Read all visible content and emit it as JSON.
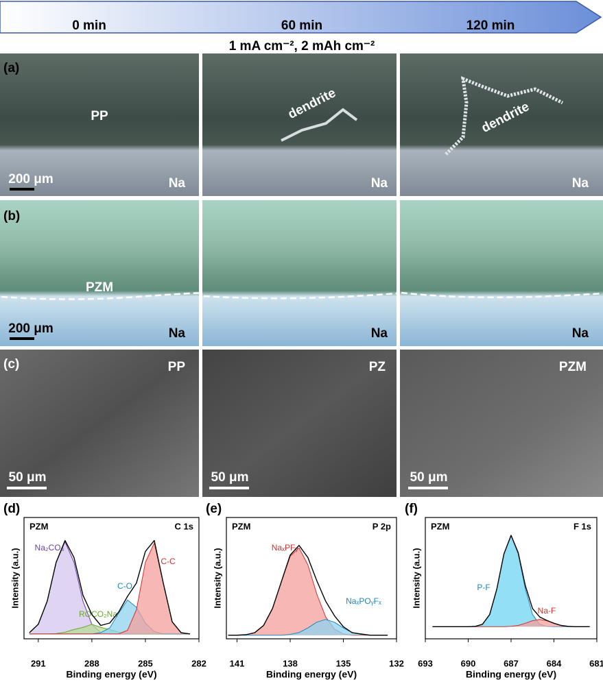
{
  "timeline": {
    "labels": [
      "0 min",
      "60 min",
      "120 min"
    ],
    "condition": "1 mA cm⁻², 2 mAh cm⁻²"
  },
  "panel_a": {
    "label": "(a)",
    "sample": "PP",
    "scale": "200 μm",
    "na": [
      "Na",
      "Na",
      "Na"
    ],
    "dendrite": [
      "dendrite",
      "dendrite"
    ]
  },
  "panel_b": {
    "label": "(b)",
    "sample": "PZM",
    "scale": "200 μm",
    "na": [
      "Na",
      "Na",
      "Na"
    ]
  },
  "panel_c": {
    "label": "(c)",
    "samples": [
      "PP",
      "PZ",
      "PZM"
    ],
    "scale": [
      "50 μm",
      "50 μm",
      "50 μm"
    ]
  },
  "chart_data": [
    {
      "type": "line",
      "panel": "(d)",
      "sample": "PZM",
      "region": "C 1s",
      "xlabel": "Binding energy (eV)",
      "ylabel": "Intensity (a.u.)",
      "x": [
        291.5,
        291,
        290.5,
        290,
        289.5,
        289,
        288.5,
        288,
        287.5,
        287,
        286.5,
        286,
        285.5,
        285,
        284.5,
        284,
        283.5,
        283,
        282.5
      ],
      "xlim": [
        291.8,
        282
      ],
      "xticks": [
        291,
        288,
        285,
        282
      ],
      "ylim": [
        0,
        100
      ],
      "series": [
        {
          "name": "Na₂CO₃",
          "color": "#6a3fa8",
          "fill": "#d6c6ef",
          "values": [
            5,
            12,
            31,
            63,
            80,
            63,
            31,
            12,
            5,
            4,
            4,
            4,
            4,
            4,
            4,
            4,
            4,
            4,
            4
          ]
        },
        {
          "name": "ROCO₂Na",
          "color": "#6aa62a",
          "fill": "#b9dc98",
          "values": [
            4,
            4,
            4,
            4.3,
            5.4,
            7.7,
            9.4,
            12,
            9.4,
            7.7,
            5.4,
            4.3,
            4,
            4,
            4,
            4,
            4,
            4,
            4
          ]
        },
        {
          "name": "C-O",
          "color": "#1f86c0",
          "fill": "#8fd3ef",
          "values": [
            4,
            4,
            4,
            4,
            4,
            4,
            4,
            4,
            5,
            9,
            21,
            32,
            26,
            13,
            6,
            4,
            4,
            4,
            4
          ]
        },
        {
          "name": "C-C",
          "color": "#d32f2f",
          "fill": "#f4a09c",
          "values": [
            4,
            4,
            4,
            4,
            4,
            4,
            4,
            4,
            4,
            4,
            4,
            7,
            24,
            63,
            79,
            46,
            14,
            5,
            4
          ]
        },
        {
          "color": "#000000",
          "values": [
            5,
            12,
            31,
            63,
            81,
            67,
            36,
            20,
            11,
            13,
            22,
            35,
            46,
            72,
            81,
            46,
            14,
            5,
            4
          ]
        }
      ]
    },
    {
      "type": "line",
      "panel": "(e)",
      "sample": "PZM",
      "region": "P 2p",
      "xlabel": "Binding energy (eV)",
      "ylabel": "Intensity (a.u.)",
      "x": [
        141.5,
        141,
        140.5,
        140,
        139.5,
        139,
        138.5,
        138,
        137.5,
        137,
        136.5,
        136,
        135.5,
        135,
        134.5,
        134,
        133.5,
        133,
        132.5
      ],
      "xlim": [
        141.6,
        132
      ],
      "xticks": [
        141,
        138,
        135,
        132
      ],
      "ylim": [
        0,
        100
      ],
      "series": [
        {
          "name": "NaₓPFᵧ",
          "color": "#d32f2f",
          "fill": "#f4a09c",
          "values": [
            3,
            3,
            3.4,
            5,
            11,
            25,
            47,
            68,
            75,
            61,
            37,
            18,
            8,
            4,
            3,
            3,
            3,
            3,
            3
          ]
        },
        {
          "name": "NaₓPOᵧFₓ",
          "color": "#1f86c0",
          "fill": "#8fd3ef",
          "values": [
            3,
            3,
            3,
            3,
            3,
            3,
            3,
            3.6,
            5.2,
            9,
            13.7,
            16,
            13.7,
            9,
            5.2,
            3.6,
            3,
            3,
            3
          ]
        },
        {
          "color": "#000000",
          "values": [
            3,
            3,
            3.4,
            5,
            11,
            25,
            47,
            69,
            77,
            67,
            48,
            31,
            19,
            10,
            5,
            4,
            3,
            3,
            3
          ]
        }
      ]
    },
    {
      "type": "line",
      "panel": "(f)",
      "sample": "PZM",
      "region": "F 1s",
      "xlabel": "Binding energy (eV)",
      "ylabel": "Intensity (a.u.)",
      "x": [
        692.5,
        692,
        691.5,
        691,
        690.5,
        690,
        689.5,
        689,
        688.5,
        688,
        687.5,
        687,
        686.5,
        686,
        685.5,
        685,
        684.5,
        684,
        683.5,
        683,
        682.5,
        682,
        681.5
      ],
      "xlim": [
        693,
        681
      ],
      "xticks": [
        693,
        690,
        687,
        684,
        681
      ],
      "ylim": [
        0,
        100
      ],
      "series": [
        {
          "name": "P-F",
          "color": "#1f86c0",
          "fill": "#6fd4f2",
          "values": [
            10,
            10,
            10,
            10,
            10,
            10,
            10.3,
            12,
            20,
            41,
            70,
            85,
            70,
            41,
            20,
            12,
            10.3,
            10,
            10,
            10,
            10,
            10,
            10
          ]
        },
        {
          "name": "Na-F",
          "color": "#d32f2f",
          "fill": "#f4a09c",
          "values": [
            10,
            10,
            10,
            10,
            10,
            10,
            10,
            10,
            10,
            10,
            10,
            10.3,
            11,
            12.8,
            14.9,
            16,
            14.9,
            12.8,
            11,
            10.3,
            10,
            10,
            10
          ]
        },
        {
          "color": "#000000",
          "values": [
            10,
            10,
            10,
            10,
            10,
            10,
            10.3,
            12,
            20,
            41,
            70,
            85.3,
            71,
            43.8,
            24.9,
            18,
            15.2,
            12.8,
            11,
            10.3,
            10,
            10,
            10
          ]
        }
      ]
    }
  ]
}
